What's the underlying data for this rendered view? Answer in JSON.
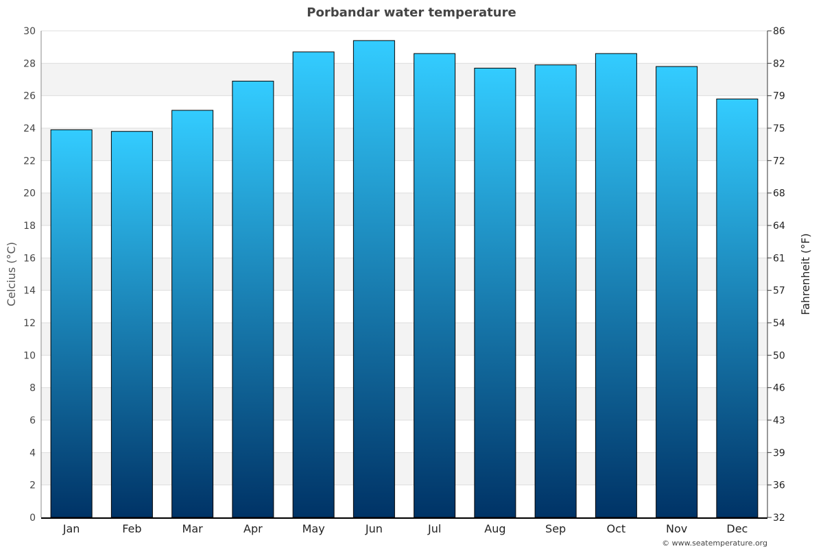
{
  "chart_data": {
    "type": "bar",
    "title": "Porbandar water temperature",
    "ylabel": "Celcius (°C)",
    "y2label": "Fahrenheit (°F)",
    "categories": [
      "Jan",
      "Feb",
      "Mar",
      "Apr",
      "May",
      "Jun",
      "Jul",
      "Aug",
      "Sep",
      "Oct",
      "Nov",
      "Dec"
    ],
    "values": [
      23.9,
      23.8,
      25.1,
      26.9,
      28.7,
      29.4,
      28.6,
      27.7,
      27.9,
      28.6,
      27.8,
      25.8
    ],
    "ylim": [
      0,
      30
    ],
    "yticks": [
      "0",
      "2",
      "4",
      "6",
      "8",
      "10",
      "12",
      "14",
      "16",
      "18",
      "20",
      "22",
      "24",
      "26",
      "28",
      "30"
    ],
    "y2ticks": [
      "32",
      "36",
      "39",
      "43",
      "46",
      "50",
      "54",
      "57",
      "61",
      "64",
      "68",
      "72",
      "75",
      "79",
      "82",
      "86"
    ],
    "grid": true,
    "bar_color_top": "#33ccff",
    "bar_color_bottom": "#003366"
  },
  "footer": {
    "credit": "© www.seatemperature.org"
  }
}
